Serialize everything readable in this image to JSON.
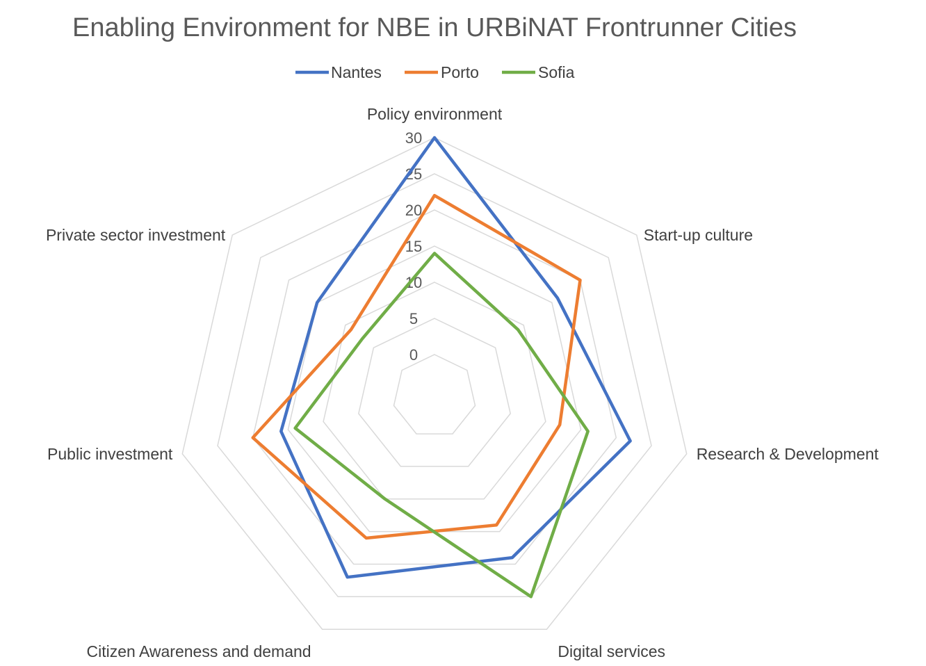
{
  "chart_data": {
    "type": "radar",
    "title": "Enabling Environment for NBE in URBiNAT Frontrunner Cities",
    "categories": [
      "Policy environment",
      "Start-up culture",
      "Research & Development",
      "Digital services",
      "Citizen Awareness and demand",
      "Public investment",
      "Private sector investment"
    ],
    "radial_ticks": [
      0,
      5,
      10,
      15,
      20,
      25,
      30
    ],
    "rmax": 30,
    "grid": true,
    "legend_position": "top",
    "series": [
      {
        "name": "Nantes",
        "color": "#4472C4",
        "values": [
          30,
          16,
          22,
          19,
          22,
          16,
          15
        ]
      },
      {
        "name": "Porto",
        "color": "#ED7D31",
        "values": [
          22,
          20,
          12,
          14,
          16,
          20,
          9
        ]
      },
      {
        "name": "Sofia",
        "color": "#70AD47",
        "values": [
          14,
          9,
          16,
          25,
          10,
          14,
          7
        ]
      }
    ]
  }
}
